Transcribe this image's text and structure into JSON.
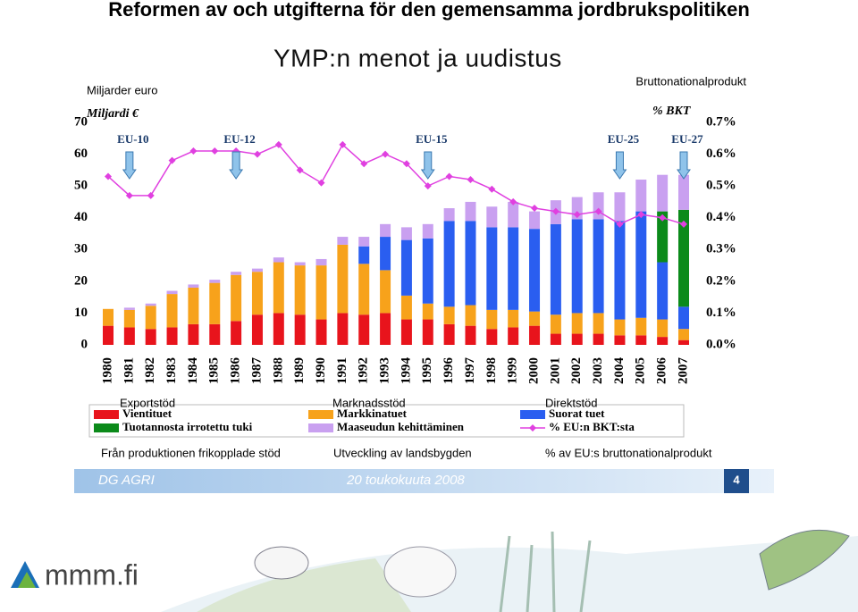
{
  "title": "Reformen av och utgifterna för den gemensamma jordbrukspolitiken",
  "slide_title": "YMP:n menot ja uudistus",
  "left_caption": "Miljarder euro",
  "right_caption": "Bruttonationalprodukt",
  "chart_data": {
    "type": "bar",
    "stacked": true,
    "y_label": "Miljardi €",
    "y2_label": "% BKT",
    "categories": [
      "1980",
      "1981",
      "1982",
      "1983",
      "1984",
      "1985",
      "1986",
      "1987",
      "1988",
      "1989",
      "1990",
      "1991",
      "1992",
      "1993",
      "1994",
      "1995",
      "1996",
      "1997",
      "1998",
      "1999",
      "2000",
      "2001",
      "2002",
      "2003",
      "2004",
      "2005",
      "2006",
      "2007"
    ],
    "ylim": [
      0,
      70
    ],
    "yticks": [
      0,
      10,
      20,
      30,
      40,
      50,
      60,
      70
    ],
    "y2lim": [
      0,
      0.7
    ],
    "y2ticks": [
      {
        "value": 0,
        "label": "0.0%"
      },
      {
        "value": 0.1,
        "label": "0.1%"
      },
      {
        "value": 0.2,
        "label": "0.2%"
      },
      {
        "value": 0.3,
        "label": "0.3%"
      },
      {
        "value": 0.4,
        "label": "0.4%"
      },
      {
        "value": 0.5,
        "label": "0.5%"
      },
      {
        "value": 0.6,
        "label": "0.6%"
      },
      {
        "value": 0.7,
        "label": "0.7%"
      }
    ],
    "grid": false,
    "series": [
      {
        "name": "Vientituet",
        "translation": "Exportstöd",
        "color": "#e8141c",
        "values": [
          6,
          5.5,
          5,
          5.5,
          6.5,
          6.5,
          7.5,
          9.5,
          10,
          9.5,
          8,
          10,
          9.5,
          10,
          8,
          8,
          6.5,
          6,
          5,
          5.5,
          6,
          3.5,
          3.5,
          3.5,
          3,
          3,
          2.5,
          1.5
        ]
      },
      {
        "name": "Markkinatuet",
        "translation": "Marknadsstöd",
        "color": "#f7a21b",
        "values": [
          5.3,
          5.5,
          7.3,
          10.5,
          11.5,
          13,
          14.5,
          13.5,
          16,
          15.5,
          17,
          21.5,
          16,
          13.5,
          7.5,
          5,
          5.5,
          6.5,
          6,
          5.5,
          4.5,
          6,
          6.5,
          6.5,
          5,
          5.5,
          5.5,
          3.5
        ]
      },
      {
        "name": "Suorat tuet",
        "translation": "Direktstöd",
        "color": "#2a5ef0",
        "values": [
          null,
          null,
          null,
          null,
          null,
          null,
          null,
          null,
          null,
          null,
          null,
          null,
          5.5,
          10.5,
          17.5,
          20.5,
          27,
          26.5,
          26,
          26,
          26,
          28.5,
          29.5,
          29.5,
          31,
          33.5,
          18,
          7
        ]
      },
      {
        "name": "Tuotannosta irrotettu tuki",
        "translation": "Från produktionen frikopplade stöd",
        "color": "#0b8a1a",
        "values": [
          null,
          null,
          null,
          null,
          null,
          null,
          null,
          null,
          null,
          null,
          null,
          null,
          null,
          null,
          null,
          null,
          null,
          null,
          null,
          null,
          null,
          null,
          null,
          null,
          null,
          null,
          16,
          30.5
        ]
      },
      {
        "name": "Maaseudun kehittäminen",
        "translation": "Utveckling av landsbygden",
        "color": "#c9a0f0",
        "values": [
          null,
          0.7,
          0.7,
          1,
          1,
          1,
          1,
          1,
          1.5,
          1,
          2,
          2.5,
          3,
          4,
          4,
          4.5,
          4,
          6,
          6.5,
          8,
          5.5,
          7.5,
          7,
          8.5,
          9,
          10,
          11.5,
          11
        ]
      },
      {
        "name": "% EU:n BKT:sta",
        "translation": "% av EU:s bruttonationalprodukt",
        "color": "#e040e0",
        "axis": "y2",
        "kind": "line",
        "values": [
          0.53,
          0.47,
          0.47,
          0.58,
          0.61,
          0.61,
          0.61,
          0.6,
          0.63,
          0.55,
          0.51,
          0.63,
          0.57,
          0.6,
          0.57,
          0.5,
          0.53,
          0.52,
          0.49,
          0.45,
          0.43,
          0.42,
          0.41,
          0.42,
          0.38,
          0.41,
          0.4,
          0.38
        ]
      }
    ],
    "annotations": [
      {
        "text": "EU-10",
        "category": "1981"
      },
      {
        "text": "EU-12",
        "category": "1986"
      },
      {
        "text": "EU-15",
        "category": "1995"
      },
      {
        "text": "EU-25",
        "category": "2004"
      },
      {
        "text": "EU-27",
        "category": "2007"
      }
    ]
  },
  "footer": {
    "left": "DG AGRI",
    "date": "20 toukokuuta 2008",
    "page": "4"
  },
  "logo": "mmm.fi"
}
